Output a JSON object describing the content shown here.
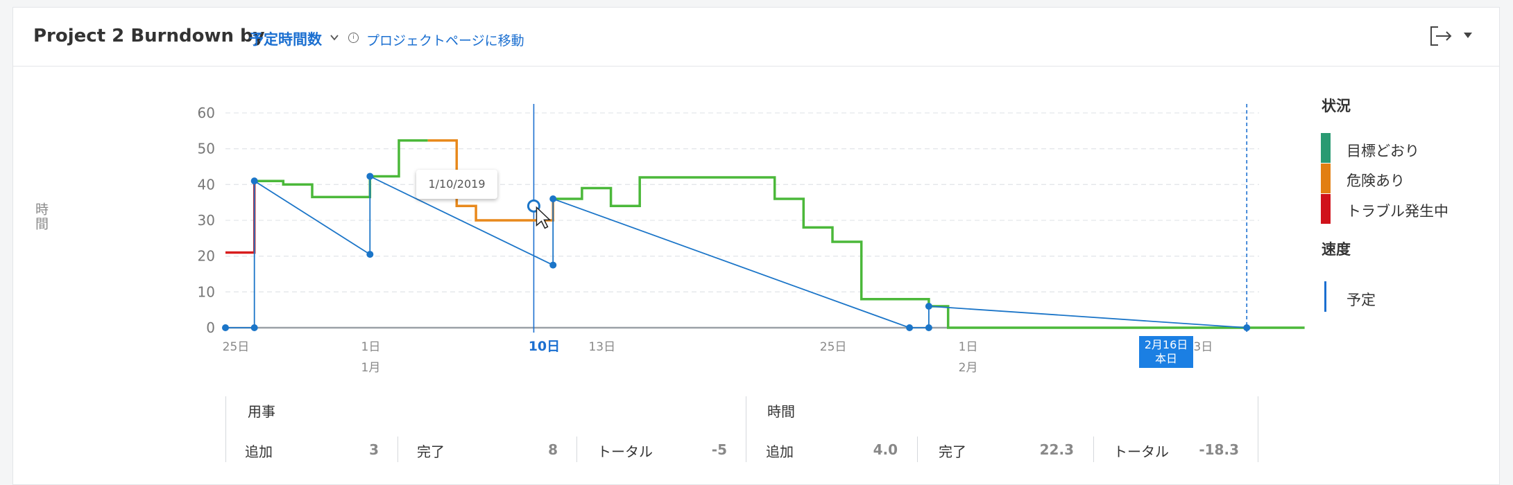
{
  "header": {
    "title": "Project 2 Burndown by",
    "metric_selector": "予定時間数",
    "goto_link": "プロジェクトページに移動"
  },
  "chart_data": {
    "type": "line",
    "ylabel": "時間",
    "ylim": [
      0,
      60
    ],
    "y_ticks": [
      0,
      10,
      20,
      30,
      40,
      50,
      60
    ],
    "x_ticks": [
      {
        "label": "25日",
        "sub": "",
        "x": "2018-12-25"
      },
      {
        "label": "1日",
        "sub": "1月",
        "x": "2019-01-01"
      },
      {
        "label": "10日",
        "sub": "",
        "x": "2019-01-10",
        "highlight": true
      },
      {
        "label": "13日",
        "sub": "",
        "x": "2019-01-13"
      },
      {
        "label": "25日",
        "sub": "",
        "x": "2019-01-25"
      },
      {
        "label": "1日",
        "sub": "2月",
        "x": "2019-02-01"
      },
      {
        "label": "13日",
        "sub": "",
        "x": "2019-02-13"
      }
    ],
    "xlim": [
      "2018-12-25",
      "2019-02-26"
    ],
    "grid": true,
    "series": [
      {
        "name": "目標どおり / 危険あり / トラブル発生中",
        "kind": "step",
        "segments": [
          {
            "status": "trouble",
            "points": [
              [
                "2018-12-25",
                21
              ],
              [
                "2018-12-26.5",
                21
              ],
              [
                "2018-12-26.5",
                41
              ]
            ]
          },
          {
            "status": "on_track",
            "points": [
              [
                "2018-12-26.5",
                41
              ],
              [
                "2018-12-28",
                41
              ],
              [
                "2018-12-28",
                40
              ],
              [
                "2018-12-29.5",
                40
              ],
              [
                "2018-12-29.5",
                36.5
              ],
              [
                "2019-01-01.5",
                36.5
              ],
              [
                "2019-01-01.5",
                42.3
              ],
              [
                "2019-01-03",
                42.3
              ],
              [
                "2019-01-03",
                52.3
              ],
              [
                "2019-01-04.5",
                52.3
              ]
            ]
          },
          {
            "status": "at_risk",
            "points": [
              [
                "2019-01-04.5",
                52.3
              ],
              [
                "2019-01-06",
                52.3
              ],
              [
                "2019-01-06",
                34
              ],
              [
                "2019-01-07",
                34
              ],
              [
                "2019-01-07",
                30
              ],
              [
                "2019-01-11",
                30
              ],
              [
                "2019-01-11",
                36
              ]
            ]
          },
          {
            "status": "on_track",
            "points": [
              [
                "2019-01-11",
                36
              ],
              [
                "2019-01-12.5",
                36
              ],
              [
                "2019-01-12.5",
                39
              ],
              [
                "2019-01-14",
                39
              ],
              [
                "2019-01-14",
                34
              ],
              [
                "2019-01-15.5",
                34
              ],
              [
                "2019-01-15.5",
                42
              ],
              [
                "2019-01-22.5",
                42
              ],
              [
                "2019-01-22.5",
                36
              ],
              [
                "2019-01-24",
                36
              ],
              [
                "2019-01-24",
                28
              ],
              [
                "2019-01-25.5",
                28
              ],
              [
                "2019-01-25.5",
                24
              ],
              [
                "2019-01-27",
                24
              ],
              [
                "2019-01-27",
                8
              ],
              [
                "2019-01-30.5",
                8
              ],
              [
                "2019-01-30.5",
                6
              ],
              [
                "2019-01-31.5",
                6
              ],
              [
                "2019-01-31.5",
                0
              ],
              [
                "2019-02-19",
                0
              ]
            ]
          }
        ]
      },
      {
        "name": "予定",
        "kind": "line",
        "segments": [
          {
            "points": [
              [
                "2018-12-25",
                0
              ],
              [
                "2018-12-26.5",
                0
              ],
              [
                "2018-12-26.5",
                41
              ],
              [
                "2019-01-01.5",
                20.5
              ],
              [
                "2019-01-01.5",
                42.3
              ],
              [
                "2019-01-11",
                17.5
              ],
              [
                "2019-01-11",
                36
              ],
              [
                "2019-01-29.5",
                0
              ],
              [
                "2019-01-30.5",
                0
              ],
              [
                "2019-01-30.5",
                6
              ],
              [
                "2019-02-16",
                0
              ]
            ]
          }
        ],
        "markers": [
          [
            "2018-12-25",
            0
          ],
          [
            "2018-12-26.5",
            0
          ],
          [
            "2018-12-26.5",
            41
          ],
          [
            "2019-01-01.5",
            20.5
          ],
          [
            "2019-01-01.5",
            42.3
          ],
          [
            "2019-01-10",
            34
          ],
          [
            "2019-01-11",
            17.5
          ],
          [
            "2019-01-11",
            36
          ],
          [
            "2019-01-29.5",
            0
          ],
          [
            "2019-01-30.5",
            0
          ],
          [
            "2019-01-30.5",
            6
          ],
          [
            "2019-02-16",
            0
          ]
        ]
      }
    ],
    "hover_date": "2019-01-10",
    "tooltip": "1/10/2019",
    "today_date": "2019-02-16",
    "today_label": "2月16日",
    "today_sub": "本日",
    "legend": {
      "status_title": "状況",
      "status_items": [
        {
          "label": "目標どおり",
          "color": "#2a9a72"
        },
        {
          "label": "危険あり",
          "color": "#e27f12"
        },
        {
          "label": "トラブル発生中",
          "color": "#d0121b"
        }
      ],
      "velocity_title": "速度",
      "velocity_items": [
        {
          "label": "予定",
          "color": "#1b6fd0"
        }
      ]
    },
    "colors": {
      "on_track": "#4bb83a",
      "at_risk": "#e8891c",
      "trouble": "#d81d1d",
      "planned": "#1b75c8",
      "grid": "#e4e6ea"
    }
  },
  "stats": {
    "tasks": {
      "title": "用事",
      "added_label": "追加",
      "added": "3",
      "done_label": "完了",
      "done": "8",
      "total_label": "トータル",
      "total": "-5"
    },
    "hours": {
      "title": "時間",
      "added_label": "追加",
      "added": "4.0",
      "done_label": "完了",
      "done": "22.3",
      "total_label": "トータル",
      "total": "-18.3"
    }
  }
}
